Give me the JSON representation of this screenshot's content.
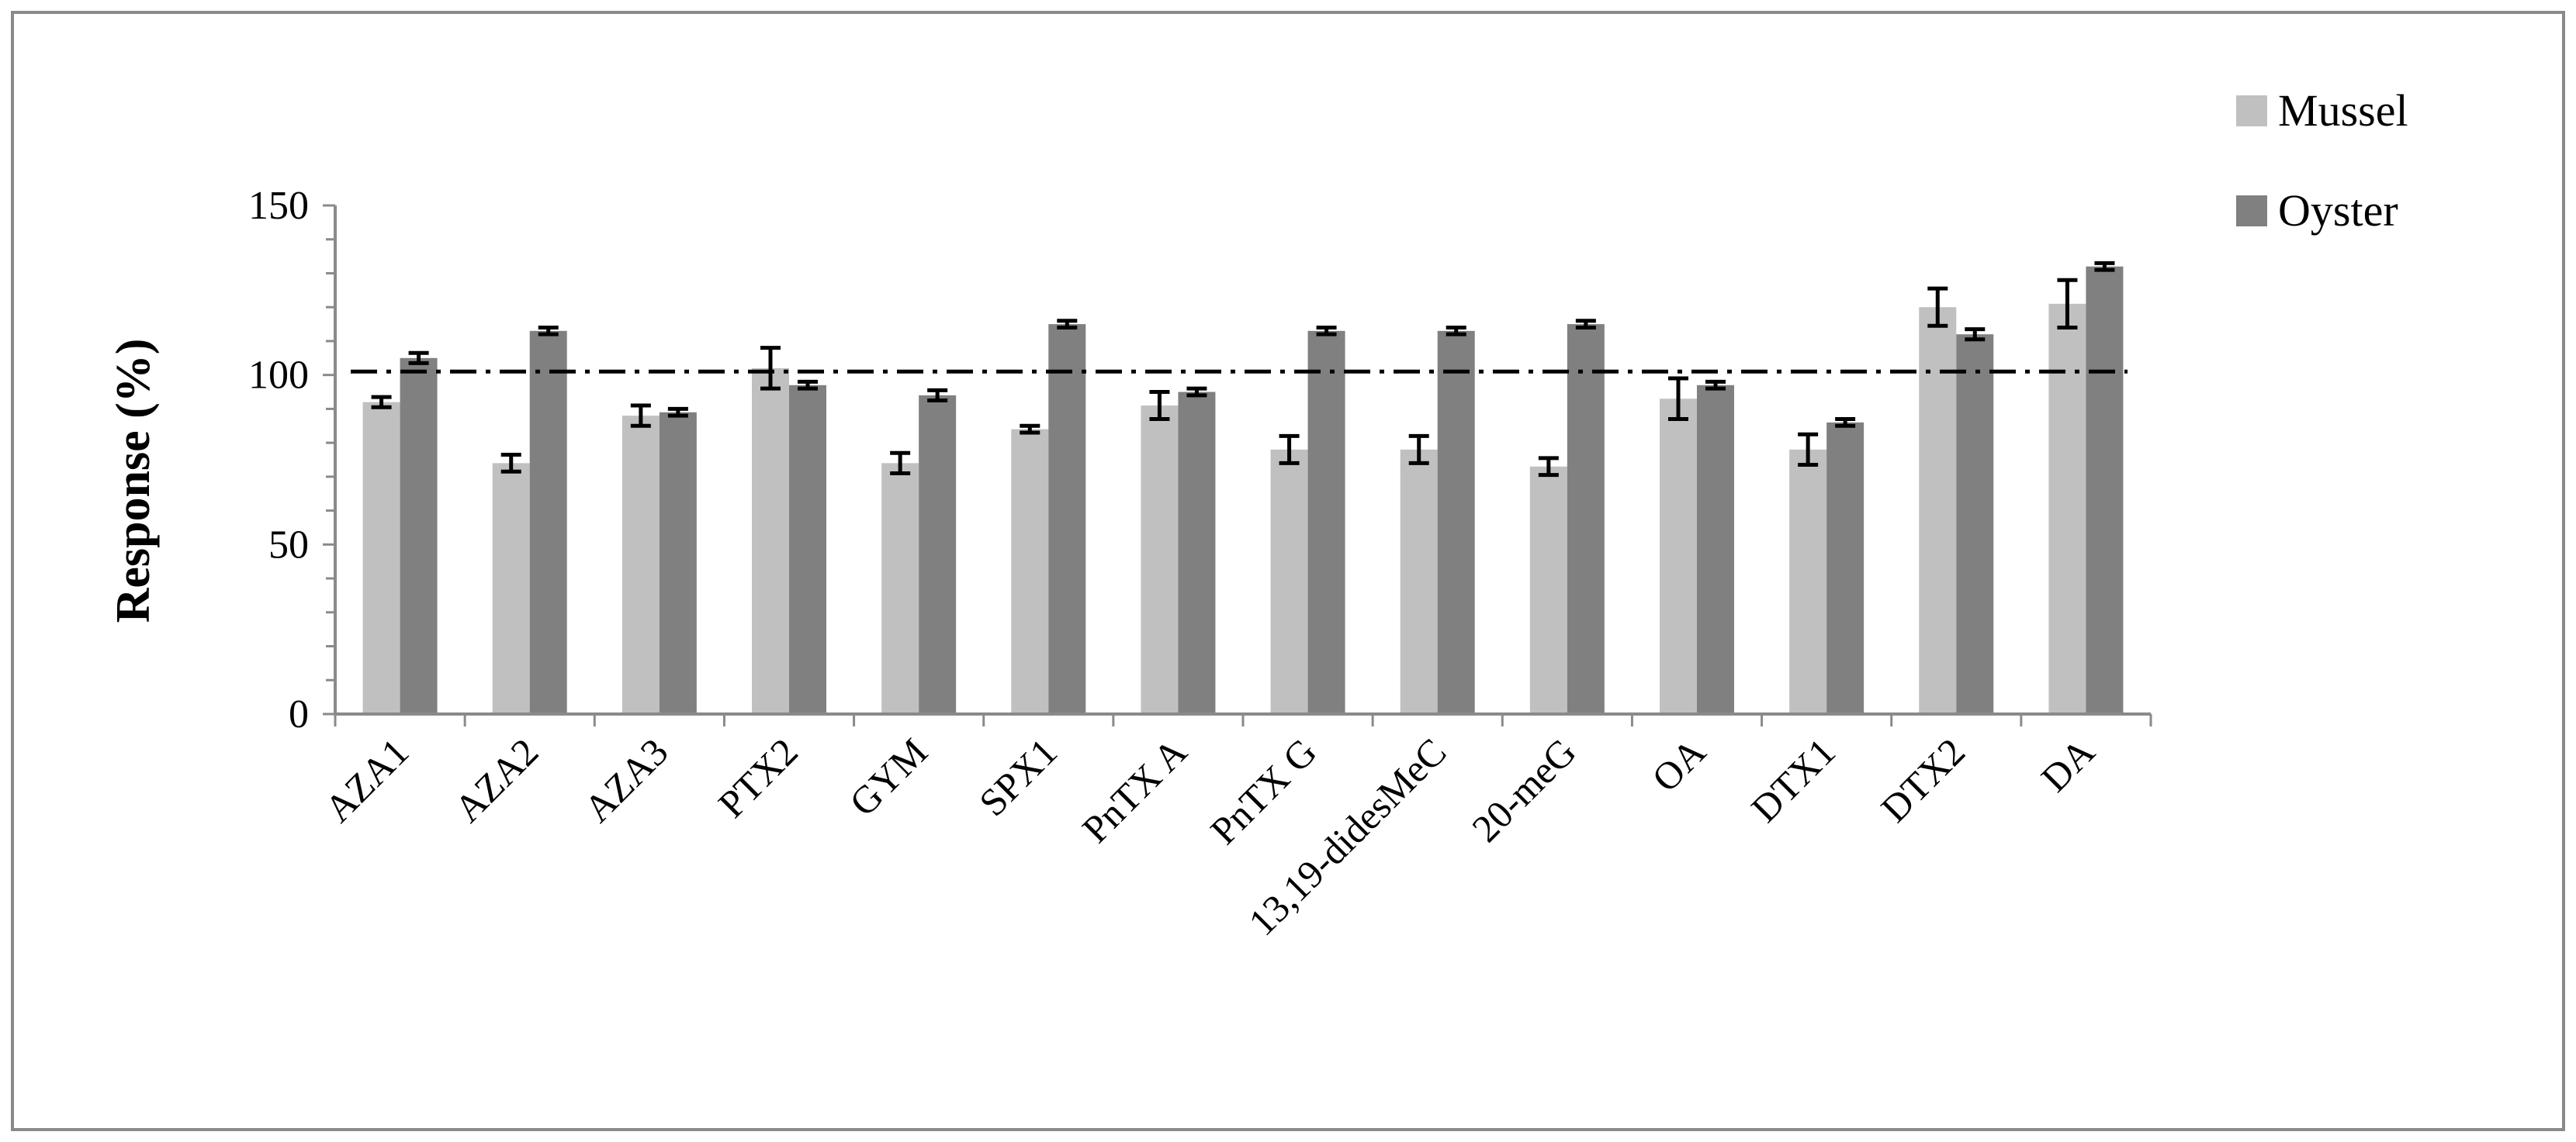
{
  "chart_data": {
    "type": "bar",
    "title": "",
    "xlabel": "",
    "ylabel": "Response (%)",
    "ylim": [
      0,
      150
    ],
    "yticks": [
      0,
      50,
      100,
      150
    ],
    "grid": false,
    "legend_position": "top-right",
    "reference_line": {
      "y": 101,
      "style": "dash-dot"
    },
    "categories": [
      "AZA1",
      "AZA2",
      "AZA3",
      "PTX2",
      "GYM",
      "SPX1",
      "PnTX A",
      "PnTX G",
      "13,19-didesMeC",
      "20-meG",
      "OA",
      "DTX1",
      "DTX2",
      "DA"
    ],
    "series": [
      {
        "name": "Mussel",
        "color": "#c0c0c0",
        "values": [
          92,
          74,
          88,
          102,
          74,
          84,
          91,
          78,
          78,
          73,
          93,
          78,
          120,
          121
        ],
        "errors": [
          1.5,
          2.5,
          3,
          6,
          3,
          1,
          4,
          4,
          4,
          2.5,
          6,
          4.5,
          5.5,
          7
        ]
      },
      {
        "name": "Oyster",
        "color": "#808080",
        "values": [
          105,
          113,
          89,
          97,
          94,
          115,
          95,
          113,
          113,
          115,
          97,
          86,
          112,
          132
        ],
        "errors": [
          1.5,
          1,
          1,
          1,
          1.5,
          1,
          1,
          1,
          1,
          1,
          1,
          1,
          1.5,
          1
        ]
      }
    ]
  }
}
